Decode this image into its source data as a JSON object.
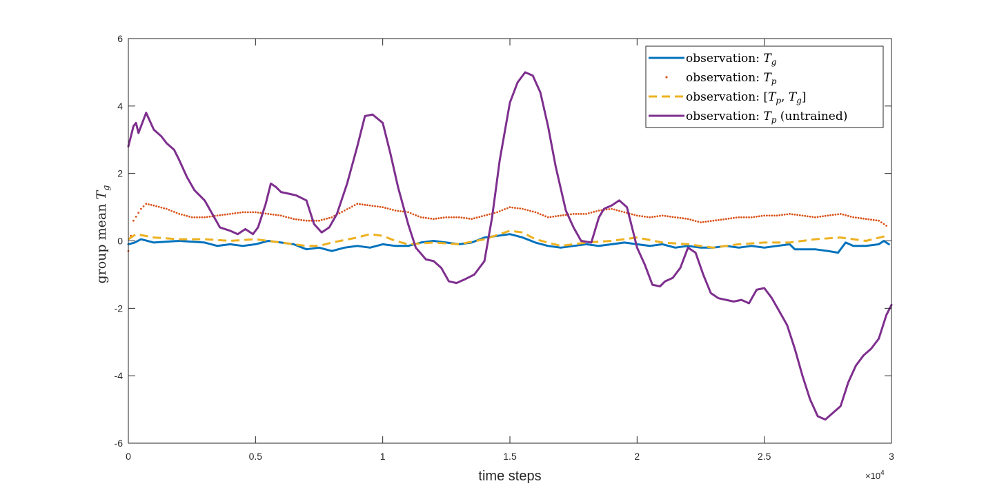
{
  "chart_data": {
    "type": "line",
    "xlabel": "time steps",
    "ylabel": {
      "main": "group mean ",
      "sym": "T",
      "sub": "g"
    },
    "xlim": [
      0,
      30000
    ],
    "ylim": [
      -6,
      6
    ],
    "x_ticks": [
      0,
      5000,
      10000,
      15000,
      20000,
      25000,
      30000
    ],
    "x_tick_labels": [
      "0",
      "0.5",
      "1",
      "1.5",
      "2",
      "2.5",
      "3"
    ],
    "x_exponent": {
      "base": "×10",
      "power": "4"
    },
    "y_ticks": [
      -6,
      -4,
      -2,
      0,
      2,
      4,
      6
    ],
    "y_tick_labels": [
      "-6",
      "-4",
      "-2",
      "0",
      "2",
      "4",
      "6"
    ],
    "grid": false,
    "legend_position": "top-right",
    "series": [
      {
        "name": "observation: T_g",
        "legend": {
          "prefix": "observation: ",
          "parts": [
            [
              "T",
              "g"
            ]
          ],
          "suffix": ""
        },
        "color": "#0072BD",
        "style": "solid",
        "x": [
          0,
          250,
          500,
          1000,
          2000,
          3000,
          3500,
          4000,
          4500,
          5000,
          5500,
          6000,
          6500,
          7000,
          7500,
          8000,
          8500,
          9000,
          9500,
          10000,
          10500,
          11000,
          11500,
          12000,
          12500,
          13000,
          13500,
          14000,
          14500,
          15000,
          15500,
          16000,
          16500,
          17000,
          17500,
          18000,
          18500,
          19000,
          19500,
          20000,
          20500,
          21000,
          21500,
          22000,
          22500,
          23000,
          23500,
          24000,
          24500,
          25000,
          25500,
          26000,
          26200,
          26500,
          27000,
          27500,
          27900,
          28200,
          28500,
          29000,
          29500,
          29700,
          29900
        ],
        "y": [
          -0.1,
          -0.05,
          0.05,
          -0.05,
          0.0,
          -0.05,
          -0.15,
          -0.1,
          -0.15,
          -0.1,
          0.0,
          -0.05,
          -0.1,
          -0.25,
          -0.2,
          -0.3,
          -0.2,
          -0.15,
          -0.2,
          -0.1,
          -0.15,
          -0.15,
          -0.05,
          0.0,
          -0.05,
          -0.1,
          -0.05,
          0.1,
          0.15,
          0.2,
          0.1,
          -0.05,
          -0.15,
          -0.2,
          -0.15,
          -0.1,
          -0.15,
          -0.1,
          -0.05,
          -0.1,
          -0.15,
          -0.1,
          -0.2,
          -0.15,
          -0.2,
          -0.2,
          -0.15,
          -0.2,
          -0.15,
          -0.2,
          -0.15,
          -0.1,
          -0.25,
          -0.25,
          -0.25,
          -0.3,
          -0.35,
          -0.05,
          -0.15,
          -0.15,
          -0.1,
          0.0,
          -0.1
        ]
      },
      {
        "name": "observation: T_p",
        "legend": {
          "prefix": "observation: ",
          "parts": [
            [
              "T",
              "p"
            ]
          ],
          "suffix": ""
        },
        "color": "#D95319",
        "style": "dotted",
        "x": [
          0,
          200,
          500,
          700,
          1000,
          1500,
          2000,
          2500,
          3000,
          3500,
          4000,
          4500,
          5000,
          5500,
          6000,
          6500,
          7000,
          7500,
          8000,
          8500,
          9000,
          9500,
          10000,
          10500,
          11000,
          11500,
          12000,
          12500,
          13000,
          13500,
          14000,
          14500,
          15000,
          15500,
          16000,
          16500,
          17000,
          17500,
          18000,
          18500,
          19000,
          19500,
          20000,
          20500,
          21000,
          21500,
          22000,
          22500,
          23000,
          23500,
          24000,
          24500,
          25000,
          25500,
          26000,
          26500,
          27000,
          27500,
          28000,
          28500,
          29000,
          29500,
          29800
        ],
        "y": [
          -0.3,
          0.6,
          0.95,
          1.1,
          1.05,
          0.95,
          0.8,
          0.7,
          0.7,
          0.75,
          0.8,
          0.85,
          0.85,
          0.8,
          0.75,
          0.65,
          0.6,
          0.6,
          0.7,
          0.9,
          1.1,
          1.05,
          1.0,
          0.9,
          0.85,
          0.7,
          0.65,
          0.7,
          0.7,
          0.65,
          0.75,
          0.85,
          1.0,
          0.95,
          0.85,
          0.7,
          0.75,
          0.8,
          0.8,
          0.9,
          0.95,
          0.85,
          0.75,
          0.7,
          0.75,
          0.7,
          0.65,
          0.55,
          0.6,
          0.65,
          0.7,
          0.7,
          0.75,
          0.75,
          0.8,
          0.75,
          0.7,
          0.75,
          0.8,
          0.7,
          0.65,
          0.6,
          0.45
        ]
      },
      {
        "name": "observation: [T_p, T_g]",
        "legend": {
          "prefix": "observation: [",
          "parts": [
            [
              "T",
              "p"
            ],
            [
              "T",
              "g"
            ]
          ],
          "suffix": "]"
        },
        "color": "#EDB120",
        "style": "dashed",
        "x": [
          0,
          300,
          1000,
          2000,
          3000,
          4000,
          5000,
          6000,
          7000,
          7500,
          8000,
          9000,
          9500,
          10000,
          10500,
          11000,
          12000,
          13000,
          14000,
          15000,
          15500,
          16000,
          17000,
          18000,
          19000,
          20000,
          21000,
          22000,
          23000,
          24000,
          25000,
          26000,
          27000,
          28000,
          29000,
          29800
        ],
        "y": [
          0.05,
          0.2,
          0.1,
          0.05,
          0.05,
          0.0,
          0.05,
          -0.05,
          -0.15,
          -0.15,
          -0.05,
          0.1,
          0.2,
          0.15,
          0.0,
          -0.1,
          -0.05,
          -0.1,
          0.05,
          0.3,
          0.25,
          0.05,
          -0.15,
          -0.05,
          0.0,
          0.1,
          -0.05,
          -0.1,
          -0.2,
          -0.1,
          -0.05,
          -0.05,
          0.05,
          0.1,
          0.0,
          0.15
        ]
      },
      {
        "name": "observation: T_p (untrained)",
        "legend": {
          "prefix": "observation: ",
          "parts": [
            [
              "T",
              "p"
            ]
          ],
          "suffix": " (untrained)"
        },
        "color": "#7E2F8E",
        "style": "solid",
        "x": [
          0,
          200,
          300,
          400,
          500,
          700,
          1000,
          1300,
          1500,
          1800,
          2000,
          2300,
          2600,
          3000,
          3300,
          3600,
          4000,
          4300,
          4600,
          4900,
          5100,
          5400,
          5600,
          5800,
          6000,
          6300,
          6600,
          7000,
          7300,
          7600,
          7900,
          8200,
          8600,
          9000,
          9300,
          9600,
          10000,
          10300,
          10600,
          11000,
          11300,
          11700,
          12000,
          12300,
          12600,
          12900,
          13200,
          13600,
          14000,
          14300,
          14600,
          15000,
          15300,
          15600,
          15900,
          16200,
          16500,
          16800,
          17200,
          17500,
          17800,
          18200,
          18500,
          18700,
          19000,
          19300,
          19600,
          19800,
          20000,
          20300,
          20600,
          20900,
          21100,
          21400,
          21700,
          22000,
          22300,
          22600,
          22900,
          23200,
          23500,
          23800,
          24100,
          24400,
          24700,
          25000,
          25300,
          25600,
          25900,
          26200,
          26500,
          26800,
          27100,
          27400,
          27700,
          28000,
          28300,
          28600,
          28900,
          29200,
          29500,
          29800,
          30000
        ],
        "y": [
          2.8,
          3.4,
          3.5,
          3.2,
          3.4,
          3.8,
          3.3,
          3.1,
          2.9,
          2.7,
          2.4,
          1.9,
          1.5,
          1.2,
          0.8,
          0.4,
          0.3,
          0.2,
          0.35,
          0.2,
          0.4,
          1.1,
          1.7,
          1.6,
          1.45,
          1.4,
          1.35,
          1.2,
          0.5,
          0.25,
          0.4,
          0.8,
          1.7,
          2.8,
          3.7,
          3.75,
          3.5,
          2.6,
          1.6,
          0.5,
          -0.2,
          -0.55,
          -0.6,
          -0.8,
          -1.2,
          -1.25,
          -1.15,
          -1.0,
          -0.6,
          0.7,
          2.4,
          4.1,
          4.7,
          5.0,
          4.9,
          4.4,
          3.4,
          2.2,
          0.9,
          0.4,
          0.0,
          -0.05,
          0.7,
          0.95,
          1.05,
          1.2,
          1.0,
          0.4,
          -0.2,
          -0.7,
          -1.3,
          -1.35,
          -1.2,
          -1.1,
          -0.8,
          -0.2,
          -0.35,
          -1.0,
          -1.55,
          -1.7,
          -1.75,
          -1.8,
          -1.75,
          -1.85,
          -1.45,
          -1.4,
          -1.7,
          -2.1,
          -2.5,
          -3.2,
          -4.0,
          -4.7,
          -5.2,
          -5.3,
          -5.1,
          -4.9,
          -4.2,
          -3.7,
          -3.4,
          -3.2,
          -2.9,
          -2.2,
          -1.9
        ]
      }
    ]
  }
}
